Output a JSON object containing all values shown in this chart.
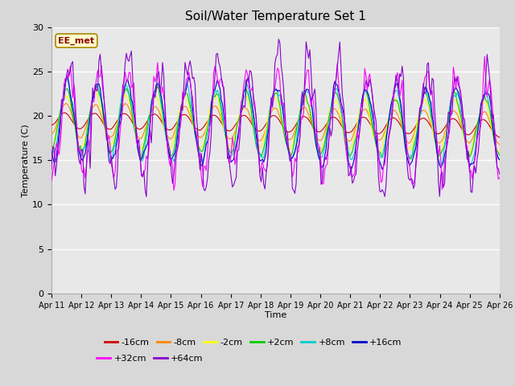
{
  "title": "Soil/Water Temperature Set 1",
  "xlabel": "Time",
  "ylabel": "Temperature (C)",
  "annotation": "EE_met",
  "ylim": [
    0,
    30
  ],
  "yticks": [
    0,
    5,
    10,
    15,
    20,
    25,
    30
  ],
  "xtick_labels": [
    "Apr 11",
    "Apr 12",
    "Apr 13",
    "Apr 14",
    "Apr 15",
    "Apr 16",
    "Apr 17",
    "Apr 18",
    "Apr 19",
    "Apr 20",
    "Apr 21",
    "Apr 22",
    "Apr 23",
    "Apr 24",
    "Apr 25",
    "Apr 26"
  ],
  "series_colors": {
    "-16cm": "#cc0000",
    "-8cm": "#ff8800",
    "-2cm": "#ffff00",
    "+2cm": "#00cc00",
    "+8cm": "#00cccc",
    "+16cm": "#0000cc",
    "+32cm": "#ff00ff",
    "+64cm": "#8800cc"
  },
  "fig_bg": "#d8d8d8",
  "plot_bg": "#e8e8e8",
  "grid_color": "#ffffff",
  "legend_row1": [
    "-16cm",
    "-8cm",
    "-2cm",
    "+2cm",
    "+8cm",
    "+16cm"
  ],
  "legend_row2": [
    "+32cm",
    "+64cm"
  ]
}
